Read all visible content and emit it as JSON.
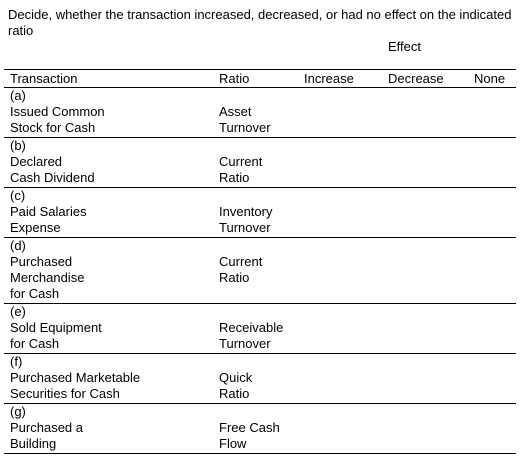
{
  "instructions": "Decide, whether the transaction increased, decreased, or had no effect on the indicated ratio",
  "effect_label": "Effect",
  "headers": {
    "transaction": "Transaction",
    "ratio": "Ratio",
    "increase": "Increase",
    "decrease": "Decrease",
    "none": "None"
  },
  "rows": [
    {
      "letter": "(a)",
      "transaction": [
        "Issued Common",
        "Stock for Cash"
      ],
      "ratio": [
        "Asset",
        "Turnover"
      ]
    },
    {
      "letter": "(b)",
      "transaction": [
        "Declared",
        "Cash Dividend"
      ],
      "ratio": [
        "Current",
        "Ratio"
      ]
    },
    {
      "letter": "(c)",
      "transaction": [
        "Paid Salaries",
        "Expense"
      ],
      "ratio": [
        "Inventory",
        "Turnover"
      ]
    },
    {
      "letter": "(d)",
      "transaction": [
        "Purchased",
        "Merchandise",
        "for Cash"
      ],
      "ratio": [
        "Current",
        "Ratio"
      ]
    },
    {
      "letter": "(e)",
      "transaction": [
        "Sold Equipment",
        "for Cash"
      ],
      "ratio": [
        "Receivable",
        "Turnover"
      ]
    },
    {
      "letter": "(f)",
      "transaction": [
        "Purchased Marketable",
        "Securities for Cash"
      ],
      "ratio": [
        "Quick",
        "Ratio"
      ]
    },
    {
      "letter": "(g)",
      "transaction": [
        "Purchased a",
        "Building"
      ],
      "ratio": [
        "Free Cash",
        "Flow"
      ]
    }
  ]
}
